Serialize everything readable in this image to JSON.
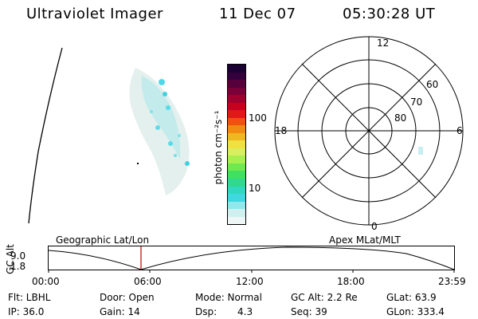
{
  "header": {
    "title": "Ultraviolet Imager",
    "date": "11 Dec 07",
    "time": "05:30:28 UT"
  },
  "colorbar": {
    "unit_label": "photon cm⁻²s⁻¹",
    "ticks": [
      "100",
      "10"
    ],
    "colors_top_to_bottom": [
      "#1a0033",
      "#33003d",
      "#55003a",
      "#7a0038",
      "#a00030",
      "#c80020",
      "#e01818",
      "#f05010",
      "#f08a10",
      "#f0b820",
      "#f0e040",
      "#d8f060",
      "#a8f050",
      "#70e850",
      "#40e060",
      "#30d890",
      "#30d8c0",
      "#40d8e0",
      "#90e8ec",
      "#d0f0f0",
      "#eef6f6"
    ]
  },
  "polar_plot": {
    "mlt_labels": {
      "top": "12",
      "left": "18",
      "right": "6",
      "bottom": "0"
    },
    "lat_labels": [
      "60",
      "70",
      "80"
    ]
  },
  "timeline": {
    "left_title": "Geographic Lat/Lon",
    "right_title": "Apex MLat/MLT",
    "y_axis_label": "GC Alt",
    "y_ticks": [
      "9.0",
      "1.8"
    ],
    "time_ticks": [
      "00:00",
      "06:00",
      "12:00",
      "18:00",
      "23:59"
    ],
    "marker_color": "#c00000"
  },
  "status": {
    "flt": "Flt: LBHL",
    "ip": "IP: 36.0",
    "door": "Door: Open",
    "gain": "Gain: 14",
    "mode": "Mode: Normal",
    "dsp_label": "Dsp:",
    "dsp_value": "4.3",
    "gc_alt": "GC Alt: 2.2 Re",
    "seq": "Seq: 39",
    "glat": "GLat:  63.9",
    "glon": "GLon: 333.4"
  }
}
